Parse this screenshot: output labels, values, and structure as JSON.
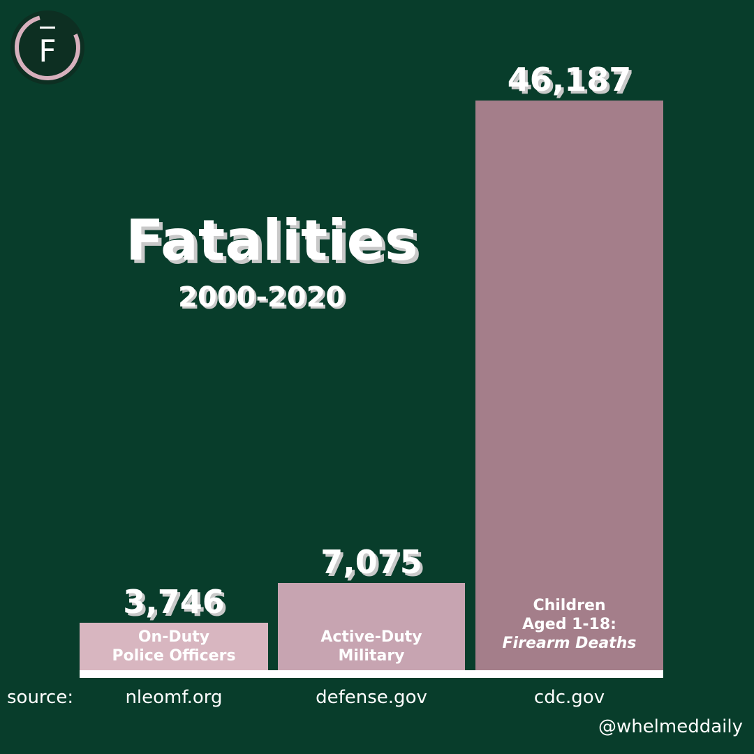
{
  "brand": {
    "logo_letter": "F",
    "handle": "@whelmeddaily"
  },
  "colors": {
    "background": "#083d2b",
    "bar_light": "#d8b6c0",
    "bar_mid": "#c7a4b1",
    "bar_dark": "#a47e8a",
    "baseline": "#ffffff",
    "logo_ring": "#d7b0bd"
  },
  "chart_data": {
    "type": "bar",
    "title": "Fatalities",
    "subtitle": "2000-2020",
    "categories": [
      "On-Duty Police Officers",
      "Active-Duty Military",
      "Children Aged 1-18: Firearm Deaths"
    ],
    "category_lines": [
      [
        "On-Duty",
        "Police Officers"
      ],
      [
        "Active-Duty",
        "Military"
      ],
      [
        "Children",
        "Aged 1-18:",
        "Firearm Deaths"
      ]
    ],
    "values": [
      3746,
      7075,
      46187
    ],
    "value_labels": [
      "3,746",
      "7,075",
      "46,187"
    ],
    "ylim": [
      0,
      46187
    ],
    "grid": false,
    "legend": "none",
    "source_label": "source:",
    "sources": [
      "nleomf.org",
      "defense.gov",
      "cdc.gov"
    ]
  }
}
